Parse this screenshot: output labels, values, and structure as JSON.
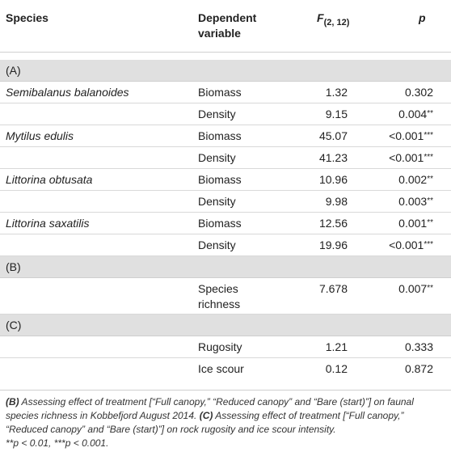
{
  "header": {
    "species": "Species",
    "dependent_line1": "Dependent",
    "dependent_line2": "variable",
    "f_label": "F",
    "f_sub": "(2, 12)",
    "p_label": "p"
  },
  "sections": {
    "a_label": "(A)",
    "b_label": "(B)",
    "c_label": "(C)"
  },
  "rows_a": [
    {
      "species": "Semibalanus balanoides",
      "dep": "Biomass",
      "f": "1.32",
      "p": "0.302",
      "stars": ""
    },
    {
      "species": "",
      "dep": "Density",
      "f": "9.15",
      "p": "0.004",
      "stars": "**"
    },
    {
      "species": "Mytilus edulis",
      "dep": "Biomass",
      "f": "45.07",
      "p": "<0.001",
      "stars": "***"
    },
    {
      "species": "",
      "dep": "Density",
      "f": "41.23",
      "p": "<0.001",
      "stars": "***"
    },
    {
      "species": "Littorina obtusata",
      "dep": "Biomass",
      "f": "10.96",
      "p": "0.002",
      "stars": "**"
    },
    {
      "species": "",
      "dep": "Density",
      "f": "9.98",
      "p": "0.003",
      "stars": "**"
    },
    {
      "species": "Littorina saxatilis",
      "dep": "Biomass",
      "f": "12.56",
      "p": "0.001",
      "stars": "**"
    },
    {
      "species": "",
      "dep": "Density",
      "f": "19.96",
      "p": "<0.001",
      "stars": "***"
    }
  ],
  "row_b": {
    "dep1": "Species",
    "dep2": "richness",
    "f": "7.678",
    "p": "0.007",
    "stars": "**"
  },
  "rows_c": [
    {
      "dep": "Rugosity",
      "f": "1.21",
      "p": "0.333",
      "stars": ""
    },
    {
      "dep": "Ice scour",
      "f": "0.12",
      "p": "0.872",
      "stars": ""
    }
  ],
  "footnote": {
    "b_tag": "(B)",
    "b_text": " Assessing effect of treatment [“Full canopy,” “Reduced canopy” and “Bare (start)”] on faunal species richness in Kobbefjord August 2014. ",
    "c_tag": "(C)",
    "c_text": " Assessing effect of treatment [“Full canopy,” “Reduced canopy” and “Bare (start)”] on rock rugosity and ice scour intensity.",
    "sig_line": "**p < 0.01, ***p < 0.001."
  }
}
